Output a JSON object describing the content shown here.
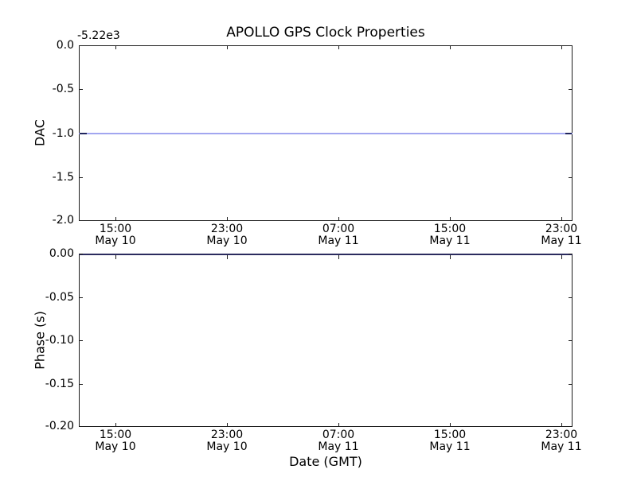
{
  "figure": {
    "title": "APOLLO GPS Clock Properties",
    "colors": {
      "background": "#ffffff",
      "text": "#000000",
      "spine": "#1c1c1c",
      "data_line": "#a2a6f0",
      "data_line_dense_ends": "#20255e",
      "phase_line_on_spine": "#2b2b5e"
    }
  },
  "chart_data": [
    {
      "type": "line",
      "title": "APOLLO GPS Clock Properties",
      "ylabel": "DAC",
      "y_offset_text": "-5.22e3",
      "ylim": [
        -2.0,
        0.0
      ],
      "yticks": [
        "0.0",
        "-0.5",
        "-1.0",
        "-1.5",
        "-2.0"
      ],
      "xticks": [
        [
          "15:00",
          "May 10"
        ],
        [
          "23:00",
          "May 10"
        ],
        [
          "07:00",
          "May 11"
        ],
        [
          "15:00",
          "May 11"
        ],
        [
          "23:00",
          "May 11"
        ]
      ],
      "xtick_spacing_hours": 8,
      "grid": false,
      "legend": false,
      "series": [
        {
          "name": "DAC",
          "shape": "constant horizontal line spanning the full x-range",
          "y_displayed": -1.0,
          "y_actual_with_offset": -5221,
          "note": "line appears darker (denser data) for ~9 px at the far left and right ends"
        }
      ]
    },
    {
      "type": "line",
      "ylabel": "Phase (s)",
      "xlabel": "Date (GMT)",
      "ylim": [
        -0.2,
        0.0
      ],
      "yticks": [
        "0.00",
        "-0.05",
        "-0.10",
        "-0.15",
        "-0.20"
      ],
      "xticks": [
        [
          "15:00",
          "May 10"
        ],
        [
          "23:00",
          "May 10"
        ],
        [
          "07:00",
          "May 11"
        ],
        [
          "15:00",
          "May 11"
        ],
        [
          "23:00",
          "May 11"
        ]
      ],
      "xtick_spacing_hours": 8,
      "grid": false,
      "legend": false,
      "series": [
        {
          "name": "Phase",
          "shape": "constant horizontal line at 0.00 coinciding with the top spine (navy blend)",
          "y_displayed": 0.0
        }
      ]
    }
  ]
}
